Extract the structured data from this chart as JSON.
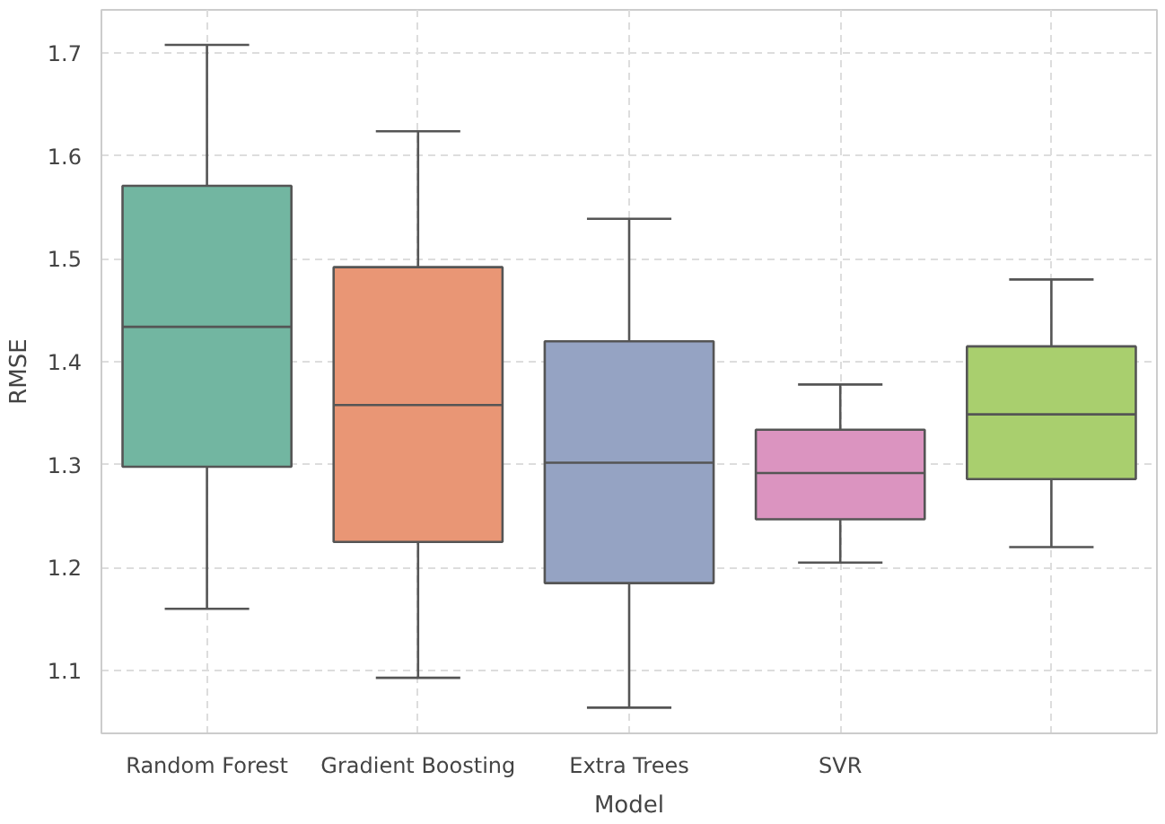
{
  "chart_data": {
    "type": "box",
    "xlabel": "Model",
    "ylabel": "RMSE",
    "categories": [
      "Random Forest",
      "Gradient Boosting",
      "Extra Trees",
      "SVR",
      null
    ],
    "colors": [
      "#72b6a1",
      "#e99675",
      "#95a3c3",
      "#db94c0",
      "#a9cf6e"
    ],
    "boxes": [
      {
        "low": 1.16,
        "q1": 1.298,
        "median": 1.434,
        "q3": 1.571,
        "high": 1.708
      },
      {
        "low": 1.093,
        "q1": 1.225,
        "median": 1.358,
        "q3": 1.492,
        "high": 1.624
      },
      {
        "low": 1.064,
        "q1": 1.185,
        "median": 1.302,
        "q3": 1.42,
        "high": 1.539
      },
      {
        "low": 1.205,
        "q1": 1.247,
        "median": 1.292,
        "q3": 1.334,
        "high": 1.378
      },
      {
        "low": 1.22,
        "q1": 1.286,
        "median": 1.349,
        "q3": 1.415,
        "high": 1.48
      }
    ],
    "ylim": [
      1.039,
      1.742
    ],
    "yticks": [
      1.1,
      1.2,
      1.3,
      1.4,
      1.5,
      1.6,
      1.7
    ],
    "grid": true
  }
}
